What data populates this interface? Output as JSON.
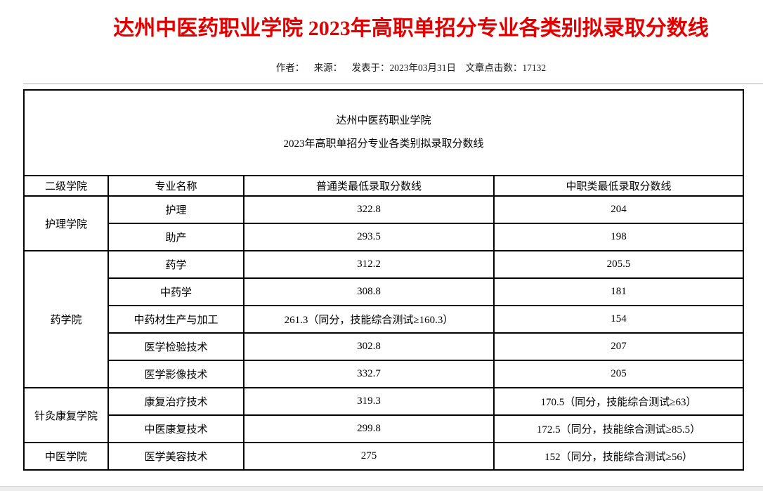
{
  "page": {
    "title": "达州中医药职业学院 2023年高职单招分专业各类别拟录取分数线",
    "meta": {
      "author_label": "作者：",
      "source_label": "来源：",
      "published": "发表于：2023年03月31日",
      "clicks": "文章点击数：17132"
    },
    "colors": {
      "title_red": "#e00000",
      "divider_gray": "#d9d9d9",
      "page_background": "#ededed",
      "table_border": "#000000"
    }
  },
  "table": {
    "caption_line1": "达州中医药职业学院",
    "caption_line2": "2023年高职单招分专业各类别拟录取分数线",
    "headers": [
      "二级学院",
      "专业名称",
      "普通类最低录取分数线",
      "中职类最低录取分数线"
    ],
    "groups": [
      {
        "college": "护理学院",
        "majors": [
          {
            "name": "护理",
            "general": "322.8",
            "vocational": "204"
          },
          {
            "name": "助产",
            "general": "293.5",
            "vocational": "198"
          }
        ]
      },
      {
        "college": "药学院",
        "majors": [
          {
            "name": "药学",
            "general": "312.2",
            "vocational": "205.5"
          },
          {
            "name": "中药学",
            "general": "308.8",
            "vocational": "181"
          },
          {
            "name": "中药材生产与加工",
            "general": "261.3（同分，技能综合测试≥160.3）",
            "vocational": "154"
          },
          {
            "name": "医学检验技术",
            "general": "302.8",
            "vocational": "207"
          },
          {
            "name": "医学影像技术",
            "general": "332.7",
            "vocational": "205"
          }
        ]
      },
      {
        "college": "针灸康复学院",
        "majors": [
          {
            "name": "康复治疗技术",
            "general": "319.3",
            "vocational": "170.5（同分，技能综合测试≥63）"
          },
          {
            "name": "中医康复技术",
            "general": "299.8",
            "vocational": "172.5（同分，技能综合测试≥85.5）"
          }
        ]
      },
      {
        "college": "中医学院",
        "majors": [
          {
            "name": "医学美容技术",
            "general": "275",
            "vocational": "152（同分，技能综合测试≥56）"
          }
        ]
      }
    ]
  }
}
